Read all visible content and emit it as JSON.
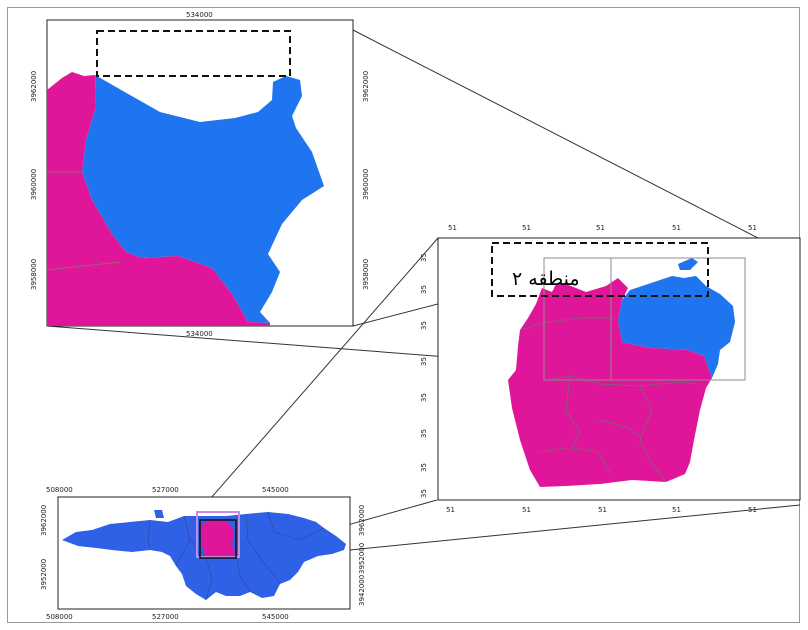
{
  "colors": {
    "region_2": "#e0169a",
    "neighbor": "#1f74ef",
    "city": "#2f61e6",
    "boundary": "#7a7a7a",
    "frame": "#222222"
  },
  "region_label": "منطقه ۲",
  "inset_top": {
    "top_ticks": [
      "534000"
    ],
    "bottom_ticks": [
      "534000"
    ],
    "left_ticks": [
      "3962000",
      "3960000",
      "3958000"
    ],
    "right_ticks": [
      "3962000",
      "3960000",
      "3958000"
    ]
  },
  "region_map": {
    "top_ticks": [
      "51",
      "51",
      "51",
      "51",
      "51"
    ],
    "bottom_ticks": [
      "51",
      "51",
      "51",
      "51",
      "51"
    ],
    "left_ticks": [
      "35",
      "35",
      "35",
      "35",
      "35",
      "35",
      "35",
      "35"
    ]
  },
  "city_map": {
    "top_ticks": [
      "508000",
      "527000",
      "545000"
    ],
    "bottom_ticks": [
      "508000",
      "527000",
      "545000"
    ],
    "left_ticks": [
      "3962000",
      "3952000"
    ],
    "right_ticks": [
      "3962000",
      "3952000",
      "3942000"
    ]
  }
}
